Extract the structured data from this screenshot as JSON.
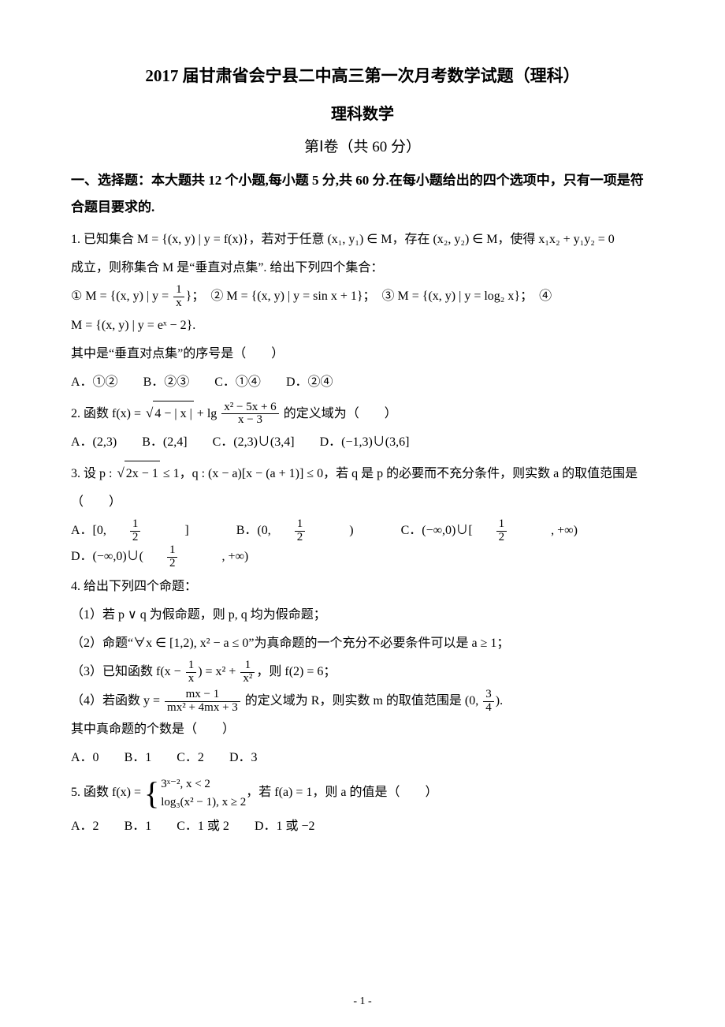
{
  "title_main": "2017 届甘肃省会宁县二中高三第一次月考数学试题（理科）",
  "title_sub": "理科数学",
  "title_part": "第Ⅰ卷（共 60 分）",
  "section_head": "一、选择题：本大题共 12 个小题,每小题 5 分,共 60 分.在每小题给出的四个选项中，只有一项是符合题目要求的.",
  "q1": {
    "line1": "1. 已知集合 M = {(x, y) | y = f(x)}，若对于任意 (x₁, y₁) ∈ M，存在 (x₂, y₂) ∈ M，使得 x₁x₂ + y₁y₂ = 0",
    "line2": "成立，则称集合 M 是“垂直对点集”. 给出下列四个集合：",
    "set1_pre": "① M = {(x, y) | y = ",
    "set1_num": "1",
    "set1_den": "x",
    "set1_post": "}；",
    "set2": "② M = {(x, y) | y = sin x + 1}；",
    "set3": "③ M = {(x, y) | y = log₂ x}；",
    "set4_label": "④",
    "set4": "M = {(x, y) | y = eˣ − 2}.",
    "ask": "其中是“垂直对点集”的序号是（　　）",
    "optA": "A．①②",
    "optB": "B．②③",
    "optC": "C．①④",
    "optD": "D．②④"
  },
  "q2": {
    "pre": "2. 函数 f(x) = ",
    "rad": "4 − | x |",
    "mid": " + lg ",
    "num": "x² − 5x + 6",
    "den": "x − 3",
    "post": " 的定义域为（　　）",
    "optA": "A．(2,3)",
    "optB": "B．(2,4]",
    "optC": "C．(2,3)∪(3,4]",
    "optD": "D．(−1,3)∪(3,6]"
  },
  "q3": {
    "line_pre": "3. 设 p : ",
    "p_rad": "2x − 1",
    "p_post": " ≤ 1，q : (x − a)[x − (a + 1)] ≤ 0，若 q 是 p 的必要而不充分条件，则实数 a 的取值范围是",
    "paren": "（　　）",
    "optA_pre": "A．[0, ",
    "half_num": "1",
    "half_den": "2",
    "optA_post": "]",
    "optB_pre": "B．(0, ",
    "optB_post": ")",
    "optC_pre": "C．(−∞,0)∪[",
    "optC_post": ", +∞)",
    "optD_pre": "D．(−∞,0)∪(",
    "optD_post": ", +∞)"
  },
  "q4": {
    "head": "4. 给出下列四个命题：",
    "s1": "（1）若 p ∨ q 为假命题，则 p, q 均为假命题；",
    "s2": "（2）命题“∀x ∈ [1,2), x² − a ≤ 0”为真命题的一个充分不必要条件可以是 a ≥ 1；",
    "s3_pre": "（3）已知函数 f(x − ",
    "s3_num1": "1",
    "s3_den1": "x",
    "s3_mid": ") = x² + ",
    "s3_num2": "1",
    "s3_den2": "x²",
    "s3_post": "，则 f(2) = 6；",
    "s4_pre": "（4）若函数 y = ",
    "s4_num": "mx − 1",
    "s4_den": "mx² + 4mx + 3",
    "s4_mid": " 的定义域为 R，则实数 m 的取值范围是 (0, ",
    "s4_num2": "3",
    "s4_den2": "4",
    "s4_post": ").",
    "ask": "其中真命题的个数是（　　）",
    "optA": "A．0",
    "optB": "B．1",
    "optC": "C．2",
    "optD": "D．3"
  },
  "q5": {
    "pre": "5. 函数 f(x) = ",
    "row1": "3ˣ⁻², x < 2",
    "row2": "log₃(x² − 1), x ≥ 2",
    "post": "，若 f(a) = 1，则 a 的值是（　　）",
    "optA": "A．2",
    "optB": "B．1",
    "optC": "C．1 或 2",
    "optD": "D．1 或 −2"
  },
  "page_num": "- 1 -"
}
